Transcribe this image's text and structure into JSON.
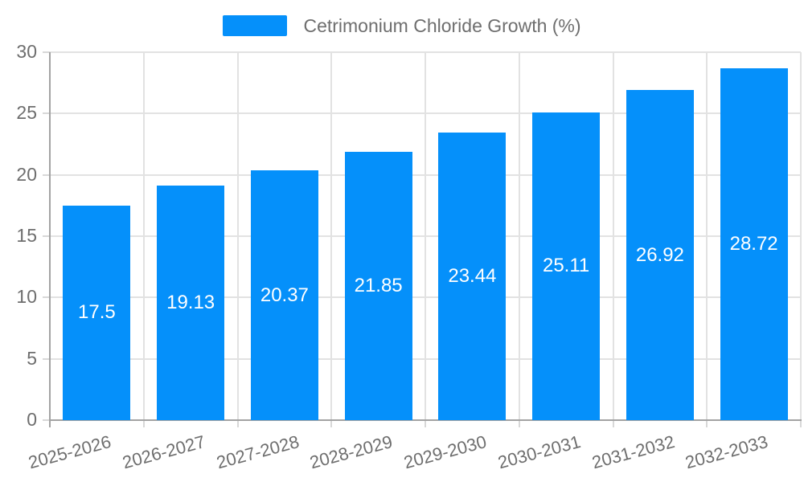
{
  "legend": {
    "label": "Cetrimonium Chloride Growth (%)"
  },
  "colors": {
    "bar": "#0590fa",
    "grid": "#e2e2e2",
    "axis": "#a3a3a3",
    "tick": "#d8d8d8",
    "tick_label": "#6e6e6e",
    "bar_value_label": "#ffffff",
    "background": "#ffffff"
  },
  "chart_data": {
    "type": "bar",
    "title": "",
    "legend_entries": [
      "Cetrimonium Chloride Growth (%)"
    ],
    "legend_position": "top-center",
    "categories": [
      "2025-2026",
      "2026-2027",
      "2027-2028",
      "2028-2029",
      "2029-2030",
      "2030-2031",
      "2031-2032",
      "2032-2033"
    ],
    "series": [
      {
        "name": "Cetrimonium Chloride Growth (%)",
        "values": [
          17.5,
          19.13,
          20.37,
          21.85,
          23.44,
          25.11,
          26.92,
          28.72
        ]
      }
    ],
    "value_labels": [
      "17.5",
      "19.13",
      "20.37",
      "21.85",
      "23.44",
      "25.11",
      "26.92",
      "28.72"
    ],
    "xlabel": "",
    "ylabel": "",
    "ylim": [
      0,
      30
    ],
    "yticks": [
      0,
      5,
      10,
      15,
      20,
      25,
      30
    ],
    "grid": true,
    "x_tick_label_rotation_deg": -15,
    "bar_value_labels_position": "center"
  }
}
